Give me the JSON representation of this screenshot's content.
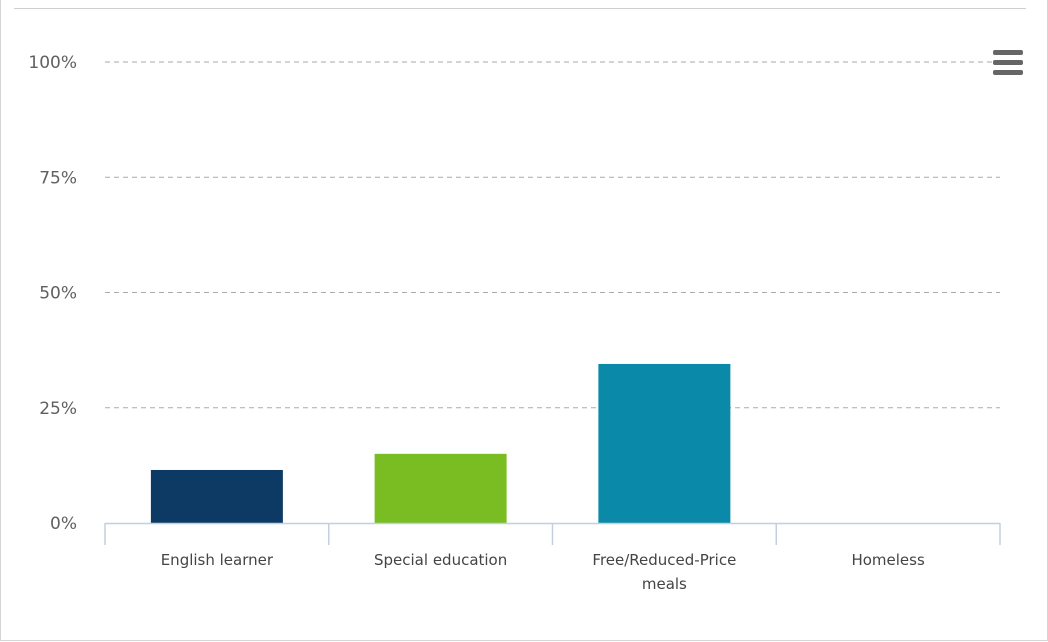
{
  "chart_data": {
    "type": "bar",
    "categories": [
      "English learner",
      "Special education",
      "Free/Reduced-Price meals",
      "Homeless"
    ],
    "category_label_lines": [
      [
        "English learner"
      ],
      [
        "Special education"
      ],
      [
        "Free/Reduced-Price",
        "meals"
      ],
      [
        "Homeless"
      ]
    ],
    "values": [
      11.5,
      15,
      34.5,
      0
    ],
    "colors": [
      "#0d3a64",
      "#79bd22",
      "#0a8aa8",
      "#7fa7c9"
    ],
    "ylim": [
      0,
      100
    ],
    "yticks": [
      0,
      25,
      50,
      75,
      100
    ],
    "ytick_labels": [
      "0%",
      "25%",
      "50%",
      "75%",
      "100%"
    ],
    "grid": true,
    "legend": "none"
  },
  "menu": {
    "icon": "hamburger-menu-icon"
  }
}
